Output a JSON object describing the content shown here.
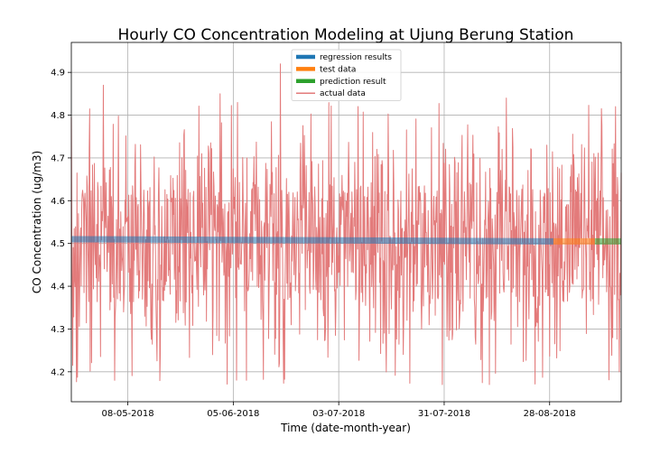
{
  "chart_data": {
    "type": "line",
    "title": "Hourly CO Concentration Modeling at Ujung Berung Station",
    "xlabel": "Time (date-month-year)",
    "ylabel": "CO Concentration (ug/m3)",
    "x_range": [
      "2018-04-23",
      "2018-09-16"
    ],
    "ylim": [
      4.13,
      4.97
    ],
    "x_ticks": [
      {
        "date": "2018-05-08",
        "label": "08-05-2018"
      },
      {
        "date": "2018-06-05",
        "label": "05-06-2018"
      },
      {
        "date": "2018-07-03",
        "label": "03-07-2018"
      },
      {
        "date": "2018-07-31",
        "label": "31-07-2018"
      },
      {
        "date": "2018-08-28",
        "label": "28-08-2018"
      }
    ],
    "y_ticks": [
      4.2,
      4.3,
      4.4,
      4.5,
      4.6,
      4.7,
      4.8,
      4.9
    ],
    "grid": true,
    "legend_position": "top-center",
    "series": [
      {
        "name": "regression results",
        "color": "#1f77b4",
        "kind": "line",
        "x": [
          "2018-04-23",
          "2018-08-29"
        ],
        "y": [
          4.51,
          4.505
        ]
      },
      {
        "name": "test data",
        "color": "#ff7f0e",
        "kind": "line",
        "x": [
          "2018-08-29",
          "2018-09-09"
        ],
        "y": [
          4.505,
          4.505
        ]
      },
      {
        "name": "prediction result",
        "color": "#2ca02c",
        "kind": "line",
        "x": [
          "2018-09-09",
          "2018-09-16"
        ],
        "y": [
          4.505,
          4.505
        ]
      },
      {
        "name": "actual data",
        "color": "#e37b7b",
        "kind": "noisy-hourly",
        "x_start": "2018-04-23",
        "x_end": "2018-09-16",
        "mean": 4.5,
        "typical_min": 4.25,
        "typical_max": 4.75,
        "peaks": [
          {
            "date": "2018-05-01",
            "value": 4.87
          },
          {
            "date": "2018-05-04",
            "value": 4.85
          },
          {
            "date": "2018-06-01",
            "value": 4.85
          },
          {
            "date": "2018-06-17",
            "value": 4.92
          },
          {
            "date": "2018-08-16",
            "value": 4.84
          },
          {
            "date": "2018-09-14",
            "value": 4.82
          }
        ],
        "troughs": [
          {
            "date": "2018-05-04",
            "value": 4.18
          },
          {
            "date": "2018-06-08",
            "value": 4.18
          },
          {
            "date": "2018-07-30",
            "value": 4.17
          },
          {
            "date": "2018-09-15",
            "value": 4.2
          }
        ]
      }
    ]
  }
}
